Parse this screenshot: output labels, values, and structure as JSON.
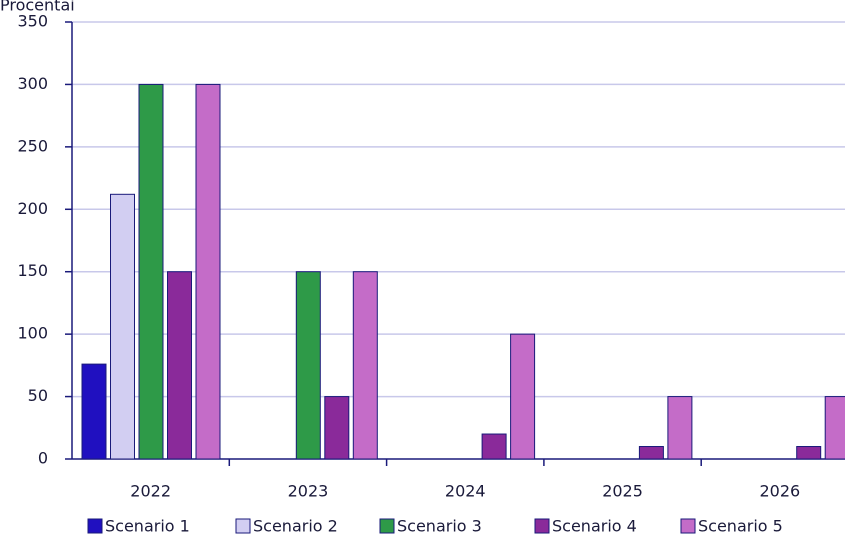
{
  "chart_data": {
    "type": "bar",
    "y_label": "Procentai",
    "categories": [
      "2022",
      "2023",
      "2024",
      "2025",
      "2026"
    ],
    "series": [
      {
        "name": "Scenario 1",
        "color": "#2010c0",
        "values": [
          76,
          0,
          0,
          0,
          0
        ]
      },
      {
        "name": "Scenario 2",
        "color": "#d2cef2",
        "values": [
          212,
          0,
          0,
          0,
          0
        ]
      },
      {
        "name": "Scenario 3",
        "color": "#2e9a48",
        "values": [
          300,
          150,
          0,
          0,
          0
        ]
      },
      {
        "name": "Scenario 4",
        "color": "#8a2a9a",
        "values": [
          150,
          50,
          20,
          10,
          10
        ]
      },
      {
        "name": "Scenario 5",
        "color": "#c46cc8",
        "values": [
          300,
          150,
          100,
          50,
          50
        ]
      }
    ],
    "ylim": [
      0,
      350
    ],
    "yticks": [
      0,
      50,
      100,
      150,
      200,
      250,
      300,
      350
    ],
    "grid": true,
    "legend": "bottom"
  }
}
